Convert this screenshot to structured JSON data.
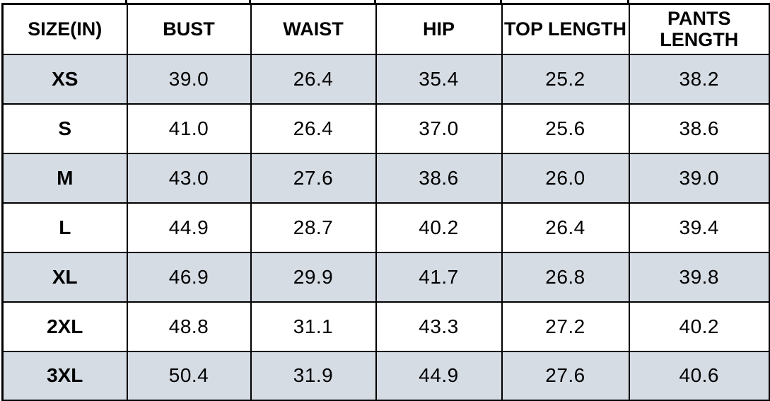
{
  "chart_data": {
    "type": "table",
    "columns": [
      "SIZE(IN)",
      "BUST",
      "WAIST",
      "HIP",
      "TOP LENGTH",
      "PANTS LENGTH"
    ],
    "rows": [
      [
        "XS",
        "39.0",
        "26.4",
        "35.4",
        "25.2",
        "38.2"
      ],
      [
        "S",
        "41.0",
        "26.4",
        "37.0",
        "25.6",
        "38.6"
      ],
      [
        "M",
        "43.0",
        "27.6",
        "38.6",
        "26.0",
        "39.0"
      ],
      [
        "L",
        "44.9",
        "28.7",
        "40.2",
        "26.4",
        "39.4"
      ],
      [
        "XL",
        "46.9",
        "29.9",
        "41.7",
        "26.8",
        "39.8"
      ],
      [
        "2XL",
        "48.8",
        "31.1",
        "43.3",
        "27.2",
        "40.2"
      ],
      [
        "3XL",
        "50.4",
        "31.9",
        "44.9",
        "27.6",
        "40.6"
      ]
    ],
    "grid": true,
    "legend_position": "none",
    "shaded_row_indices": [
      0,
      2,
      4,
      6
    ]
  },
  "colors": {
    "shaded_row_background": "#D6DCE4",
    "unshaded_row_background": "#FFFFFF",
    "border": "#000000",
    "text": "#000000"
  }
}
